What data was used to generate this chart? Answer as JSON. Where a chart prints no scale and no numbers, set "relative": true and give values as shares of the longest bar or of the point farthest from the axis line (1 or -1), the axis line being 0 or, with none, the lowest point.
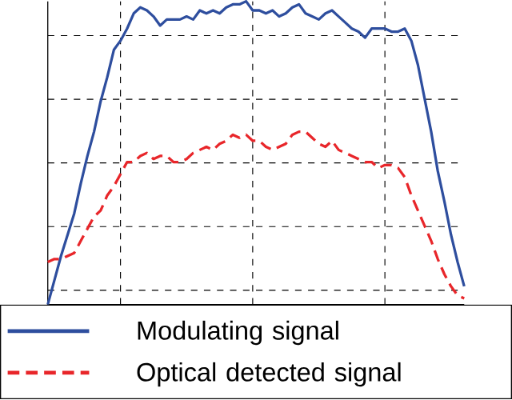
{
  "chart_data": {
    "type": "line",
    "relative": true,
    "grid": true,
    "legend": "bottom",
    "categories": [
      null,
      null,
      null,
      null,
      null,
      null,
      null,
      null,
      null,
      null,
      null,
      null,
      null,
      null,
      null,
      null,
      null,
      null,
      null,
      null,
      null,
      null,
      null,
      null,
      null,
      null,
      null,
      null,
      null,
      null,
      null,
      null,
      null,
      null,
      null,
      null,
      null,
      null,
      null,
      null,
      null,
      null,
      null,
      null,
      null,
      null,
      null,
      null,
      null,
      null,
      null,
      null,
      null,
      null,
      null,
      null,
      null,
      null,
      null,
      null,
      null,
      null,
      null,
      null
    ],
    "series": [
      {
        "name": "Modulating signal",
        "color": "#2e4e9e",
        "line_style": "solid",
        "values": [
          0,
          0.08,
          0.16,
          0.23,
          0.3,
          0.4,
          0.49,
          0.57,
          0.67,
          0.75,
          0.84,
          0.87,
          0.91,
          0.96,
          0.98,
          0.97,
          0.95,
          0.92,
          0.94,
          0.94,
          0.94,
          0.95,
          0.94,
          0.97,
          0.96,
          0.97,
          0.96,
          0.98,
          0.99,
          0.99,
          1,
          0.97,
          0.97,
          0.96,
          0.97,
          0.95,
          0.96,
          0.98,
          0.99,
          0.96,
          0.95,
          0.94,
          0.96,
          0.97,
          0.95,
          0.93,
          0.91,
          0.9,
          0.88,
          0.91,
          0.91,
          0.91,
          0.9,
          0.9,
          0.91,
          0.87,
          0.79,
          0.68,
          0.57,
          0.44,
          0.34,
          0.23,
          0.14,
          0.06
        ]
      },
      {
        "name": "Optical detected signal",
        "color": "#e8262a",
        "line_style": "dashed",
        "values": [
          0.14,
          0.15,
          0.15,
          0.16,
          0.17,
          0.21,
          0.25,
          0.29,
          0.31,
          0.36,
          0.39,
          0.43,
          0.47,
          0.47,
          0.49,
          0.5,
          0.48,
          0.49,
          0.49,
          0.47,
          0.47,
          0.48,
          0.5,
          0.51,
          0.52,
          0.51,
          0.53,
          0.54,
          0.56,
          0.55,
          0.56,
          0.54,
          0.54,
          0.52,
          0.51,
          0.52,
          0.53,
          0.56,
          0.57,
          0.57,
          0.55,
          0.53,
          0.52,
          0.54,
          0.51,
          0.5,
          0.49,
          0.48,
          0.47,
          0.47,
          0.45,
          0.46,
          0.46,
          0.45,
          0.42,
          0.36,
          0.31,
          0.26,
          0.21,
          0.15,
          0.1,
          0.06,
          0.03,
          0.02
        ]
      }
    ]
  }
}
